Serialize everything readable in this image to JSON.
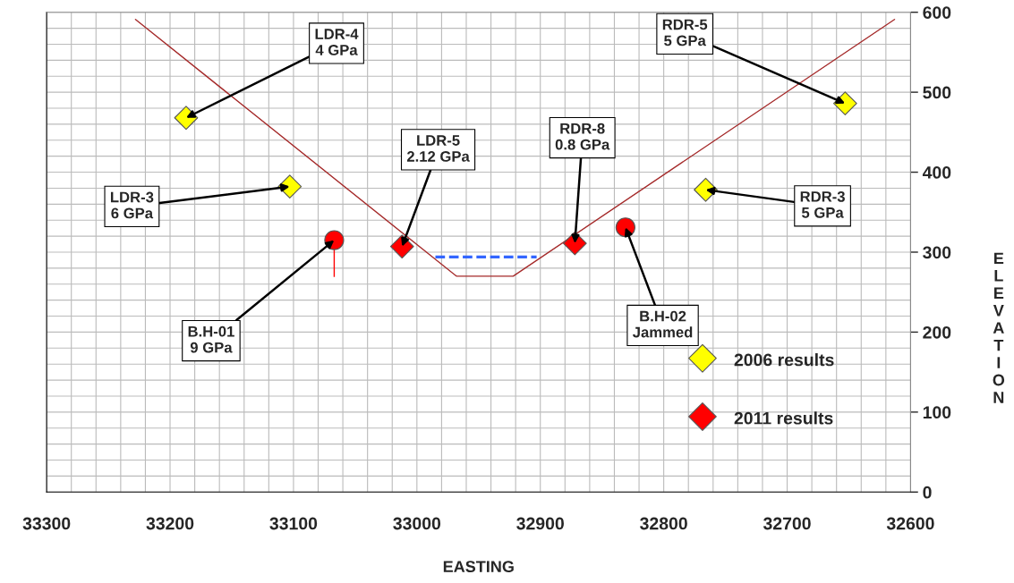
{
  "chart_data": {
    "type": "scatter",
    "xlabel": "EASTING",
    "ylabel": "ELEVATION",
    "xlim": [
      33300,
      32600
    ],
    "xticks": [
      33300,
      33200,
      33100,
      33000,
      32900,
      32800,
      32700,
      32600
    ],
    "ylim": [
      0,
      600
    ],
    "yticks": [
      0,
      100,
      200,
      300,
      400,
      500,
      600
    ],
    "grid": true,
    "legend": "bottom right",
    "series": [
      {
        "type": "line",
        "color": "#a52a2a",
        "line_style": "solid",
        "marker": "none",
        "x": [
          33228,
          32968,
          32922,
          32613
        ],
        "values": [
          591,
          270,
          270,
          591
        ]
      },
      {
        "type": "line",
        "color": "#3366ff",
        "line_style": "dashed",
        "marker": "none",
        "x": [
          32985,
          32903
        ],
        "values": [
          294,
          294
        ]
      },
      {
        "name": "2006 results",
        "color": "#ffff00",
        "marker": "diamond",
        "x": [
          33187,
          33103,
          32766,
          32653
        ],
        "values": [
          468,
          382,
          378,
          486
        ]
      },
      {
        "name": "2011 results",
        "color": "#ff0000",
        "marker": "diamond",
        "x": [
          33012,
          32872
        ],
        "values": [
          307,
          311
        ]
      },
      {
        "color": "#ff0000",
        "marker": "circle",
        "x": [
          33067,
          32831
        ],
        "values": [
          315,
          331
        ],
        "errors": [
          [
            269,
            315
          ],
          null
        ]
      }
    ],
    "annotations": [
      {
        "text": "LDR-4\n4 GPa",
        "x": 33187,
        "y": 468
      },
      {
        "text": "LDR-3\n6 GPa",
        "x": 33103,
        "y": 382
      },
      {
        "text": "B.H-01\n9 GPa",
        "x": 33067,
        "y": 315
      },
      {
        "text": "LDR-5\n2.12 GPa",
        "x": 33012,
        "y": 307
      },
      {
        "text": "RDR-8\n0.8 GPa",
        "x": 32872,
        "y": 311
      },
      {
        "text": "B.H-02\nJammed",
        "x": 32831,
        "y": 331
      },
      {
        "text": "RDR-3\n5 GPa",
        "x": 32766,
        "y": 378
      },
      {
        "text": "RDR-5\n5 GPa",
        "x": 32653,
        "y": 486
      }
    ]
  }
}
